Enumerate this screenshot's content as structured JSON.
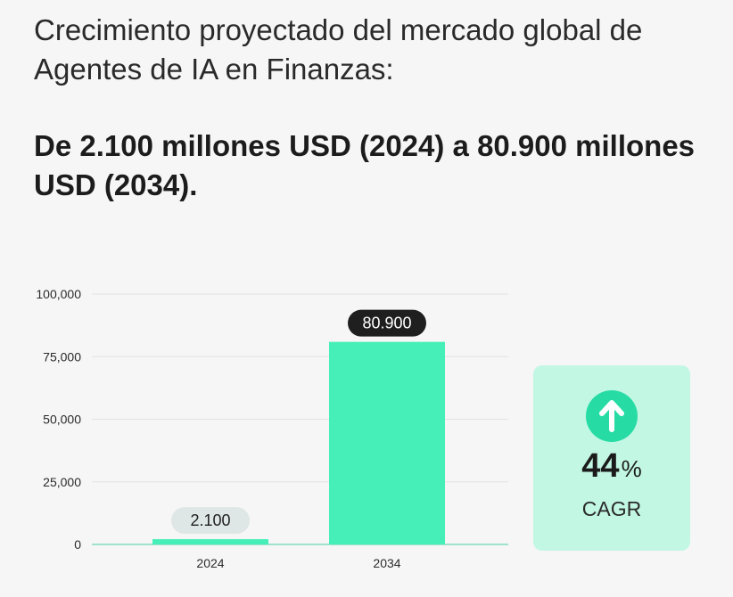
{
  "header": {
    "subtitle": "Crecimiento proyectado del mercado global de Agentes de IA en Finanzas:",
    "headline": "De 2.100 millones USD (2024) a 80.900 millones USD (2034)."
  },
  "chart_data": {
    "type": "bar",
    "title": "",
    "xlabel": "",
    "ylabel": "",
    "categories": [
      "2024",
      "2034"
    ],
    "values": [
      2100,
      80900
    ],
    "value_labels": [
      "2.100",
      "80.900"
    ],
    "ylim": [
      0,
      100000
    ],
    "yticks": [
      0,
      25000,
      50000,
      75000,
      100000
    ],
    "ytick_labels": [
      "0",
      "25,000",
      "50,000",
      "75,000",
      "100,000"
    ],
    "grid": true,
    "legend": "none",
    "colors": {
      "bar": "#45efb7",
      "grid": "#e2e2e2",
      "baseline": "#9fe3cc",
      "label_2024_bg": "#dfe6e6",
      "label_2034_bg": "#1f1f1f"
    }
  },
  "cagr": {
    "value": "44",
    "unit": "%",
    "label": "CAGR",
    "icon": "arrow-up-icon",
    "colors": {
      "card": "#c2f7e4",
      "icon_bg": "#27dca4"
    }
  }
}
